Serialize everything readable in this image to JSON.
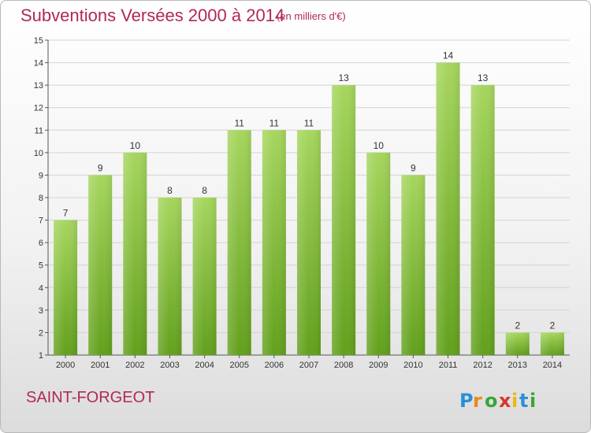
{
  "header": {
    "title": "Subventions Versées 2000 à 2014",
    "unit": "(en milliers d'€)"
  },
  "footer": {
    "place": "SAINT-FORGEOT",
    "logo_text": "Proxiti"
  },
  "colors": {
    "title": "#b0285a",
    "bar_light": "#a0d25a",
    "bar_dark": "#64a01e"
  },
  "chart_data": {
    "type": "bar",
    "title": "Subventions Versées 2000 à 2014",
    "xlabel": "",
    "ylabel": "",
    "categories": [
      "2000",
      "2001",
      "2002",
      "2003",
      "2004",
      "2005",
      "2006",
      "2007",
      "2008",
      "2009",
      "2010",
      "2011",
      "2012",
      "2013",
      "2014"
    ],
    "values": [
      7,
      9,
      10,
      8,
      8,
      11,
      11,
      11,
      13,
      10,
      9,
      14,
      13,
      2,
      2
    ],
    "ylim": [
      1,
      15
    ],
    "yticks": [
      1,
      2,
      3,
      4,
      5,
      6,
      7,
      8,
      9,
      10,
      11,
      12,
      13,
      14,
      15
    ],
    "ytick_labels": [
      "1",
      "2",
      "3",
      "4",
      "5",
      "6",
      "7",
      "8",
      "9",
      "10",
      "11",
      "12",
      "13",
      "14",
      "15"
    ],
    "grid": true,
    "grid_axis": "y",
    "data_labels": true
  }
}
